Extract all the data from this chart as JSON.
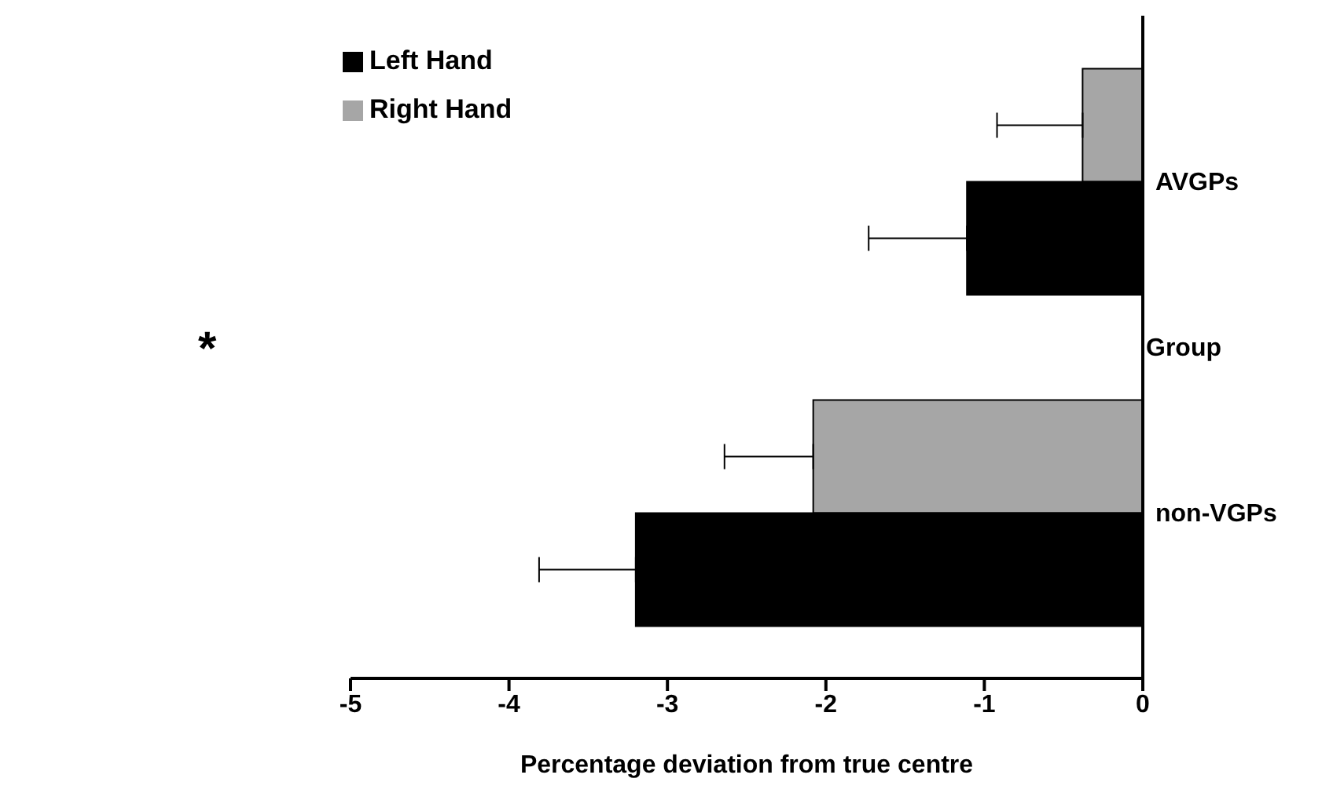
{
  "chart_data": {
    "type": "bar",
    "orientation": "horizontal",
    "categories": [
      "AVGPs",
      "non-VGPs"
    ],
    "xlabel": "Percentage deviation from true centre",
    "ylabel": "Group",
    "series": [
      {
        "name": "Right Hand",
        "color": "#a6a6a6",
        "values": [
          -0.38,
          -2.08
        ],
        "errors": [
          [
            -0.92,
            -0.38
          ],
          [
            -2.64,
            -2.08
          ]
        ]
      },
      {
        "name": "Left Hand",
        "color": "#000000",
        "values": [
          -1.11,
          -3.2
        ],
        "errors": [
          [
            -1.73,
            -1.11
          ],
          [
            -3.81,
            -3.2
          ]
        ]
      }
    ],
    "xlim": [
      -5,
      0
    ],
    "xticks": [
      -5,
      -4,
      -3,
      -2,
      -1,
      0
    ],
    "grid": false,
    "legend": "top left",
    "annotations": [
      "*"
    ]
  }
}
